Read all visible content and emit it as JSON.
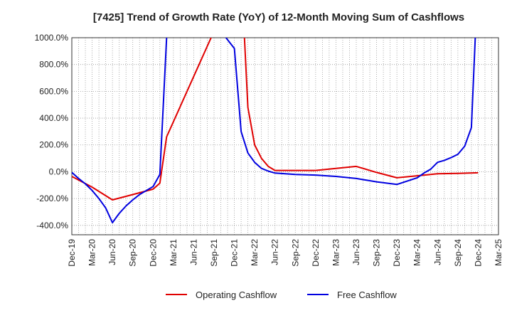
{
  "chart_data": {
    "type": "line",
    "title": "[7425]  Trend of Growth Rate (YoY) of 12-Month Moving Sum of Cashflows",
    "xlabel": "",
    "ylabel": "",
    "x_tick_labels": [
      "Dec-19",
      "Mar-20",
      "Jun-20",
      "Sep-20",
      "Dec-20",
      "Mar-21",
      "Jun-21",
      "Sep-21",
      "Dec-21",
      "Mar-22",
      "Jun-22",
      "Sep-22",
      "Dec-22",
      "Mar-23",
      "Jun-23",
      "Sep-23",
      "Dec-23",
      "Mar-24",
      "Jun-24",
      "Sep-24",
      "Dec-24",
      "Mar-25"
    ],
    "y_tick_labels": [
      "1000.0%",
      "800.0%",
      "600.0%",
      "400.0%",
      "200.0%",
      "0.0%",
      "-200.0%",
      "-400.0%"
    ],
    "y_ticks": [
      1000,
      800,
      600,
      400,
      200,
      0,
      -200,
      -400
    ],
    "ylim": [
      -470,
      1000
    ],
    "y_unit": "%",
    "grid": true,
    "legend_position": "bottom-center",
    "series": [
      {
        "name": "Operating Cashflow",
        "color": "#e00000",
        "x": [
          "2019-12",
          "2020-03",
          "2020-06",
          "2020-09",
          "2020-12",
          "2021-01",
          "2021-02",
          "2022-01",
          "2022-02",
          "2022-03",
          "2022-04",
          "2022-05",
          "2022-06",
          "2022-09",
          "2022-12",
          "2023-03",
          "2023-06",
          "2023-09",
          "2023-12",
          "2024-03",
          "2024-06",
          "2024-09",
          "2024-12"
        ],
        "values": [
          -35,
          -115,
          -210,
          -170,
          -130,
          -85,
          260,
          1500,
          480,
          200,
          100,
          40,
          10,
          10,
          10,
          25,
          40,
          -5,
          -45,
          -30,
          -15,
          -12,
          -8
        ]
      },
      {
        "name": "Free Cashflow",
        "color": "#0000e0",
        "x": [
          "2019-12",
          "2020-01",
          "2020-02",
          "2020-03",
          "2020-04",
          "2020-05",
          "2020-06",
          "2020-07",
          "2020-08",
          "2020-09",
          "2020-10",
          "2020-11",
          "2020-12",
          "2021-01",
          "2021-02",
          "2021-03",
          "2021-12",
          "2022-01",
          "2022-02",
          "2022-03",
          "2022-04",
          "2022-05",
          "2022-06",
          "2022-09",
          "2022-12",
          "2023-03",
          "2023-06",
          "2023-09",
          "2023-12",
          "2024-03",
          "2024-04",
          "2024-05",
          "2024-06",
          "2024-07",
          "2024-08",
          "2024-09",
          "2024-10",
          "2024-11",
          "2024-12"
        ],
        "values": [
          -5,
          -50,
          -90,
          -140,
          -200,
          -270,
          -380,
          -310,
          -255,
          -210,
          -170,
          -140,
          -110,
          -20,
          1000,
          1500,
          920,
          300,
          140,
          70,
          25,
          5,
          -10,
          -20,
          -25,
          -35,
          -50,
          -75,
          -95,
          -45,
          -10,
          20,
          70,
          85,
          105,
          130,
          190,
          330,
          1500
        ]
      }
    ]
  }
}
